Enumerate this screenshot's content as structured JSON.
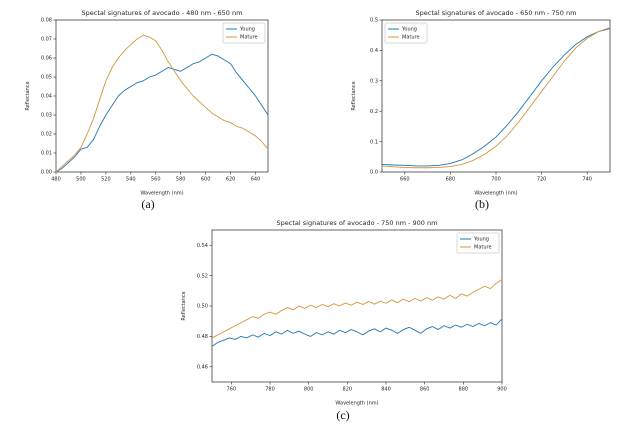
{
  "page": {
    "background": "#ffffff"
  },
  "captions": {
    "a": "(a)",
    "b": "(b)",
    "c": "(c)"
  },
  "colors": {
    "young": "#1f77b4",
    "mature": "#d6943c",
    "spine": "#262626",
    "legend_border": "#b3b3b3"
  },
  "chart_data": [
    {
      "type": "line",
      "title": "Spectal signatures of avocado - 480 nm - 650 nm",
      "xlabel": "Wavelength (nm)",
      "ylabel": "Reflectance",
      "xlim": [
        480,
        650
      ],
      "ylim": [
        0,
        0.08
      ],
      "xticks": [
        480,
        500,
        520,
        540,
        560,
        580,
        600,
        620,
        640
      ],
      "yticks": [
        0.0,
        0.01,
        0.02,
        0.03,
        0.04,
        0.05,
        0.06,
        0.07,
        0.08
      ],
      "ytick_decimals": 2,
      "legend_position": "upper-right",
      "grid": false,
      "x_start": 480,
      "x_step": 5,
      "series": [
        {
          "name": "Young",
          "color": "#1f77b4",
          "values": [
            0.0,
            0.002,
            0.005,
            0.008,
            0.012,
            0.013,
            0.017,
            0.024,
            0.03,
            0.035,
            0.04,
            0.043,
            0.045,
            0.047,
            0.048,
            0.05,
            0.051,
            0.053,
            0.055,
            0.054,
            0.053,
            0.055,
            0.057,
            0.058,
            0.06,
            0.062,
            0.061,
            0.059,
            0.057,
            0.052,
            0.048,
            0.044,
            0.04,
            0.035,
            0.03
          ]
        },
        {
          "name": "Mature",
          "color": "#d6943c",
          "values": [
            0.0,
            0.003,
            0.006,
            0.009,
            0.013,
            0.02,
            0.028,
            0.038,
            0.048,
            0.055,
            0.06,
            0.064,
            0.067,
            0.07,
            0.072,
            0.071,
            0.069,
            0.064,
            0.058,
            0.053,
            0.048,
            0.044,
            0.04,
            0.037,
            0.034,
            0.031,
            0.029,
            0.027,
            0.026,
            0.024,
            0.023,
            0.021,
            0.019,
            0.016,
            0.012
          ]
        }
      ]
    },
    {
      "type": "line",
      "title": "Spectal signatures of avocado - 650 nm - 750 nm",
      "xlabel": "Wavelength (nm)",
      "ylabel": "Reflectance",
      "xlim": [
        650,
        750
      ],
      "ylim": [
        0,
        0.5
      ],
      "xticks": [
        660,
        680,
        700,
        720,
        740
      ],
      "yticks": [
        0.0,
        0.1,
        0.2,
        0.3,
        0.4,
        0.5
      ],
      "ytick_decimals": 1,
      "legend_position": "upper-left",
      "grid": false,
      "x_start": 650,
      "x_step": 5,
      "series": [
        {
          "name": "Young",
          "color": "#1f77b4",
          "values": [
            0.025,
            0.023,
            0.022,
            0.02,
            0.02,
            0.022,
            0.028,
            0.04,
            0.06,
            0.085,
            0.115,
            0.155,
            0.2,
            0.25,
            0.3,
            0.345,
            0.385,
            0.42,
            0.445,
            0.462,
            0.472
          ]
        },
        {
          "name": "Mature",
          "color": "#d6943c",
          "values": [
            0.02,
            0.017,
            0.015,
            0.014,
            0.014,
            0.015,
            0.018,
            0.025,
            0.038,
            0.058,
            0.085,
            0.12,
            0.165,
            0.215,
            0.265,
            0.315,
            0.365,
            0.408,
            0.44,
            0.462,
            0.475
          ]
        }
      ]
    },
    {
      "type": "line",
      "title": "Spectal signatures of avocado - 750 nm - 900 nm",
      "xlabel": "Wavelength (nm)",
      "ylabel": "Reflectance",
      "xlim": [
        750,
        900
      ],
      "ylim": [
        0.45,
        0.55
      ],
      "xticks": [
        760,
        780,
        800,
        820,
        840,
        860,
        880,
        900
      ],
      "yticks": [
        0.46,
        0.48,
        0.5,
        0.52,
        0.54
      ],
      "ytick_decimals": 2,
      "legend_position": "upper-right",
      "grid": false,
      "x_start": 750,
      "x_step": 3,
      "series": [
        {
          "name": "Young",
          "color": "#1f77b4",
          "values": [
            0.4735,
            0.476,
            0.4775,
            0.479,
            0.478,
            0.48,
            0.479,
            0.481,
            0.4795,
            0.482,
            0.4805,
            0.483,
            0.4815,
            0.484,
            0.482,
            0.4835,
            0.4815,
            0.48,
            0.4825,
            0.481,
            0.483,
            0.4815,
            0.484,
            0.4825,
            0.4845,
            0.483,
            0.481,
            0.4835,
            0.485,
            0.483,
            0.4855,
            0.484,
            0.482,
            0.4845,
            0.486,
            0.484,
            0.482,
            0.485,
            0.4865,
            0.4845,
            0.487,
            0.4855,
            0.4875,
            0.486,
            0.488,
            0.4865,
            0.4885,
            0.487,
            0.489,
            0.4875,
            0.4915
          ]
        },
        {
          "name": "Mature",
          "color": "#d6943c",
          "values": [
            0.479,
            0.481,
            0.483,
            0.485,
            0.487,
            0.489,
            0.491,
            0.493,
            0.492,
            0.4945,
            0.496,
            0.4945,
            0.497,
            0.499,
            0.4975,
            0.5,
            0.4985,
            0.5005,
            0.499,
            0.501,
            0.4995,
            0.5015,
            0.5,
            0.502,
            0.5005,
            0.5025,
            0.501,
            0.503,
            0.5012,
            0.5032,
            0.5018,
            0.504,
            0.5022,
            0.5045,
            0.5028,
            0.505,
            0.5032,
            0.5055,
            0.5038,
            0.506,
            0.5045,
            0.507,
            0.505,
            0.508,
            0.5065,
            0.509,
            0.511,
            0.513,
            0.5115,
            0.515,
            0.5175
          ]
        }
      ]
    }
  ]
}
